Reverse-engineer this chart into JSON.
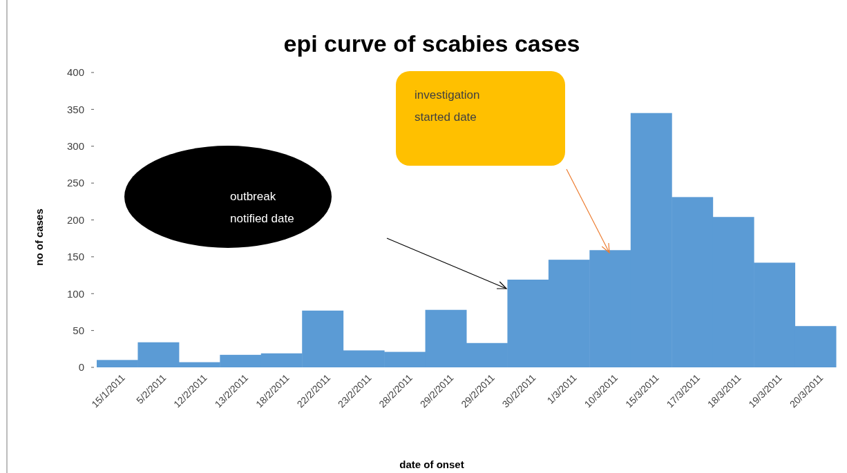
{
  "chart_data": {
    "type": "bar",
    "title": "epi curve of scabies cases",
    "xlabel": "date of onset",
    "ylabel": "no of cases",
    "categories": [
      "15/1/2011",
      "5/2/2011",
      "12/2/2011",
      "13/2/2011",
      "18/2/2011",
      "22/2/2011",
      "23/2/2011",
      "28/2/2011",
      "29/2/2011",
      "29/2/2011",
      "30/2/2011",
      "1/3/2011",
      "10/3/2011",
      "15/3/2011",
      "17/3/2011",
      "18/3/2011",
      "19/3/2011",
      "20/3/2011"
    ],
    "values": [
      10,
      34,
      7,
      17,
      19,
      77,
      23,
      21,
      78,
      33,
      119,
      146,
      159,
      345,
      231,
      204,
      142,
      56
    ],
    "color": "#5b9bd5",
    "ylim": [
      0,
      400
    ],
    "yticks": [
      0,
      50,
      100,
      150,
      200,
      250,
      300,
      350,
      400
    ],
    "grid": false,
    "annotations": [
      "outbreak notified date",
      "investigation started date"
    ]
  }
}
